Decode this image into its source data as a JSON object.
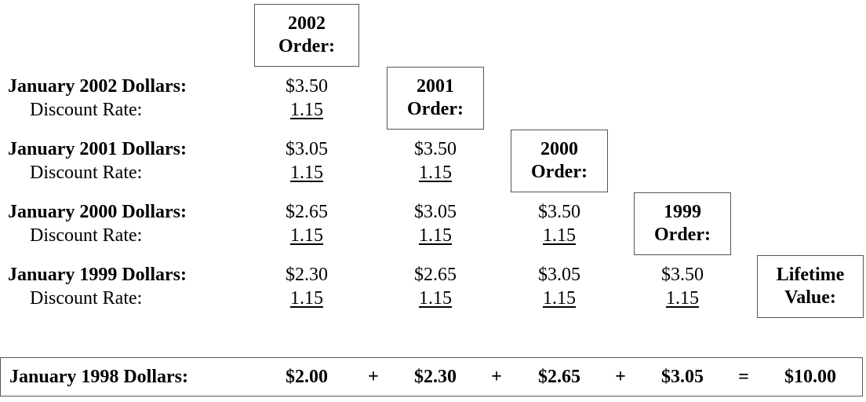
{
  "order_boxes": [
    [
      "2002",
      "Order:"
    ],
    [
      "2001",
      "Order:"
    ],
    [
      "2000",
      "Order:"
    ],
    [
      "1999",
      "Order:"
    ]
  ],
  "lifetime_box": [
    "Lifetime",
    "Value:"
  ],
  "rows": [
    {
      "label": "January 2002 Dollars:",
      "rate_label": "Discount Rate:",
      "values": [
        "$3.50"
      ],
      "rates": [
        "1.15"
      ]
    },
    {
      "label": "January 2001 Dollars:",
      "rate_label": "Discount Rate:",
      "values": [
        "$3.05",
        "$3.50"
      ],
      "rates": [
        "1.15",
        "1.15"
      ]
    },
    {
      "label": "January 2000 Dollars:",
      "rate_label": "Discount Rate:",
      "values": [
        "$2.65",
        "$3.05",
        "$3.50"
      ],
      "rates": [
        "1.15",
        "1.15",
        "1.15"
      ]
    },
    {
      "label": "January 1999 Dollars:",
      "rate_label": "Discount Rate:",
      "values": [
        "$2.30",
        "$2.65",
        "$3.05",
        "$3.50"
      ],
      "rates": [
        "1.15",
        "1.15",
        "1.15",
        "1.15"
      ]
    }
  ],
  "summary": {
    "label": "January 1998 Dollars:",
    "terms": [
      "$2.00",
      "$2.30",
      "$2.65",
      "$3.05"
    ],
    "operators": [
      "+",
      "+",
      "+"
    ],
    "equals": "=",
    "total": "$10.00"
  }
}
